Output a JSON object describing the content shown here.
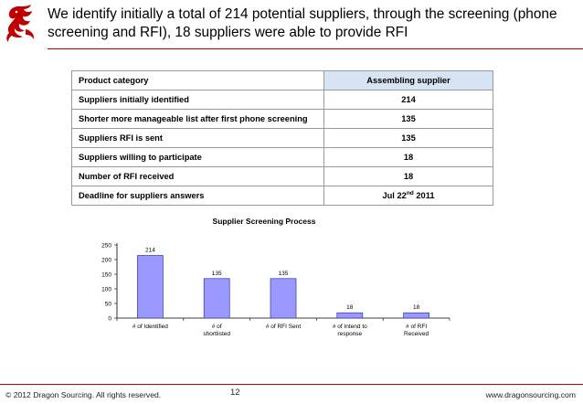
{
  "slide": {
    "title": "We identify initially a total of 214 potential suppliers, through the screening (phone screening and RFI), 18 suppliers were able to provide RFI",
    "logo_icon": "dragon-logo-icon",
    "accent_color": "#c00000"
  },
  "table": {
    "header": {
      "label": "Product category",
      "value": "Assembling supplier"
    },
    "rows": [
      {
        "label": "Suppliers initially  identified",
        "value": "214"
      },
      {
        "label": "Shorter more manageable list  after first phone screening",
        "value": "135"
      },
      {
        "label": "Suppliers RFI is sent",
        "value": "135"
      },
      {
        "label": "Suppliers willing to participate",
        "value": "18"
      },
      {
        "label": "Number of RFI received",
        "value": "18"
      },
      {
        "label": "Deadline for suppliers answers",
        "value_main": "Jul 22",
        "value_sup": "nd",
        "value_tail": " 2011"
      }
    ]
  },
  "chart_data": {
    "type": "bar",
    "title": "Supplier Screening Process",
    "categories": [
      "# of Identified",
      "# of shortlisted",
      "# of RFI Sent",
      "# of Intend to response",
      "# of RFI Received"
    ],
    "values": [
      214,
      135,
      135,
      18,
      18
    ],
    "ylim": [
      0,
      250
    ],
    "yticks": [
      "0",
      "50",
      "100",
      "150",
      "200",
      "250"
    ],
    "grid": false,
    "bar_color": "#9999ff",
    "bar_edge_color": "#333399"
  },
  "footer": {
    "copyright": "© 2012 Dragon Sourcing. All rights reserved.",
    "page_number": "12",
    "website": "www.dragonsourcing.com"
  }
}
